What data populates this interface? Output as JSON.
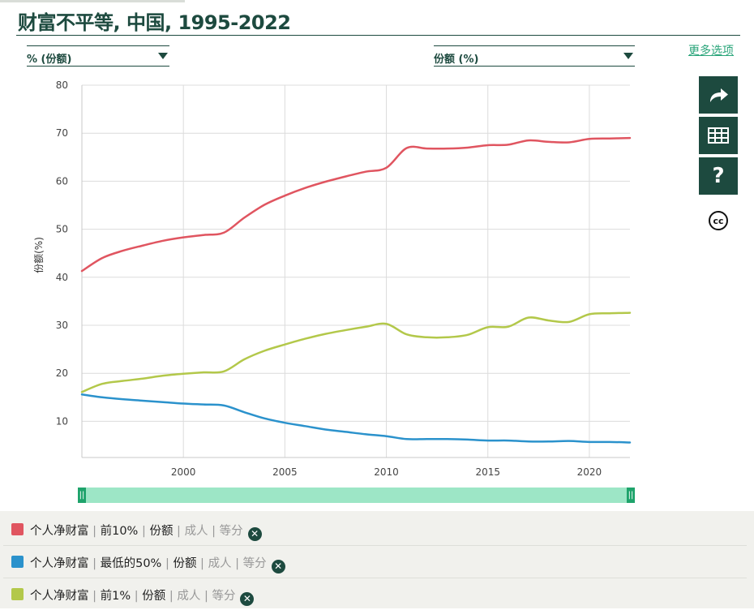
{
  "title": "财富不平等, 中国, 1995-2022",
  "selectors": {
    "left": "% (份额)",
    "right": "份额 (%)"
  },
  "more_options": "更多选项",
  "side_buttons": [
    {
      "icon": "share-icon"
    },
    {
      "icon": "table-icon"
    },
    {
      "icon": "help-icon",
      "label": "?"
    },
    {
      "icon": "cc-license-icon",
      "label": "cc"
    }
  ],
  "chart_data": {
    "type": "line",
    "ylabel": "份额(%)",
    "xlabel": "",
    "xlim": [
      1995,
      2022
    ],
    "ylim": [
      5,
      80
    ],
    "xticks": [
      2000,
      2005,
      2010,
      2015,
      2020
    ],
    "yticks": [
      10,
      20,
      30,
      40,
      50,
      60,
      70,
      80
    ],
    "grid": true,
    "series": [
      {
        "name": "个人净财富 | 前10% | 份额 | 成人 | 等分",
        "color": "#e05560",
        "x": [
          1995,
          1996,
          1997,
          1998,
          1999,
          2000,
          2001,
          2002,
          2003,
          2004,
          2005,
          2006,
          2007,
          2008,
          2009,
          2010,
          2011,
          2012,
          2013,
          2014,
          2015,
          2016,
          2017,
          2018,
          2019,
          2020,
          2021,
          2022
        ],
        "values": [
          41.3,
          44.0,
          45.5,
          46.6,
          47.6,
          48.3,
          48.8,
          49.3,
          52.4,
          55.1,
          57.0,
          58.6,
          59.9,
          61.0,
          62.0,
          62.8,
          66.9,
          66.8,
          66.8,
          67.0,
          67.5,
          67.6,
          68.5,
          68.2,
          68.1,
          68.8,
          68.9,
          69.0
        ]
      },
      {
        "name": "个人净财富 | 最低的50% | 份额 | 成人 | 等分",
        "color": "#2b92cc",
        "x": [
          1995,
          1996,
          1997,
          1998,
          1999,
          2000,
          2001,
          2002,
          2003,
          2004,
          2005,
          2006,
          2007,
          2008,
          2009,
          2010,
          2011,
          2012,
          2013,
          2014,
          2015,
          2016,
          2017,
          2018,
          2019,
          2020,
          2021,
          2022
        ],
        "values": [
          15.6,
          15.0,
          14.6,
          14.3,
          14.0,
          13.7,
          13.5,
          13.3,
          11.9,
          10.6,
          9.7,
          9.0,
          8.3,
          7.8,
          7.3,
          6.9,
          6.3,
          6.3,
          6.3,
          6.2,
          6.0,
          6.0,
          5.8,
          5.8,
          5.9,
          5.7,
          5.7,
          5.6
        ]
      },
      {
        "name": "个人净财富 | 前1% | 份额 | 成人 | 等分",
        "color": "#b3c84a",
        "x": [
          1995,
          1996,
          1997,
          1998,
          1999,
          2000,
          2001,
          2002,
          2003,
          2004,
          2005,
          2006,
          2007,
          2008,
          2009,
          2010,
          2011,
          2012,
          2013,
          2014,
          2015,
          2016,
          2017,
          2018,
          2019,
          2020,
          2021,
          2022
        ],
        "values": [
          16.1,
          17.8,
          18.4,
          18.9,
          19.5,
          19.9,
          20.2,
          20.4,
          22.9,
          24.7,
          26.0,
          27.2,
          28.2,
          29.0,
          29.7,
          30.3,
          28.1,
          27.5,
          27.5,
          28.0,
          29.6,
          29.7,
          31.6,
          31.0,
          30.7,
          32.3,
          32.5,
          32.6
        ]
      }
    ]
  },
  "range_slider": {
    "start": 1995,
    "end": 2022
  },
  "legend": [
    {
      "color": "#e05560",
      "p1": "个人净财富",
      "p2": "前10%",
      "p3": "份额",
      "p4": "成人",
      "p5": "等分"
    },
    {
      "color": "#2b92cc",
      "p1": "个人净财富",
      "p2": "最低的50%",
      "p3": "份额",
      "p4": "成人",
      "p5": "等分"
    },
    {
      "color": "#b3c84a",
      "p1": "个人净财富",
      "p2": "前1%",
      "p3": "份额",
      "p4": "成人",
      "p5": "等分"
    }
  ]
}
